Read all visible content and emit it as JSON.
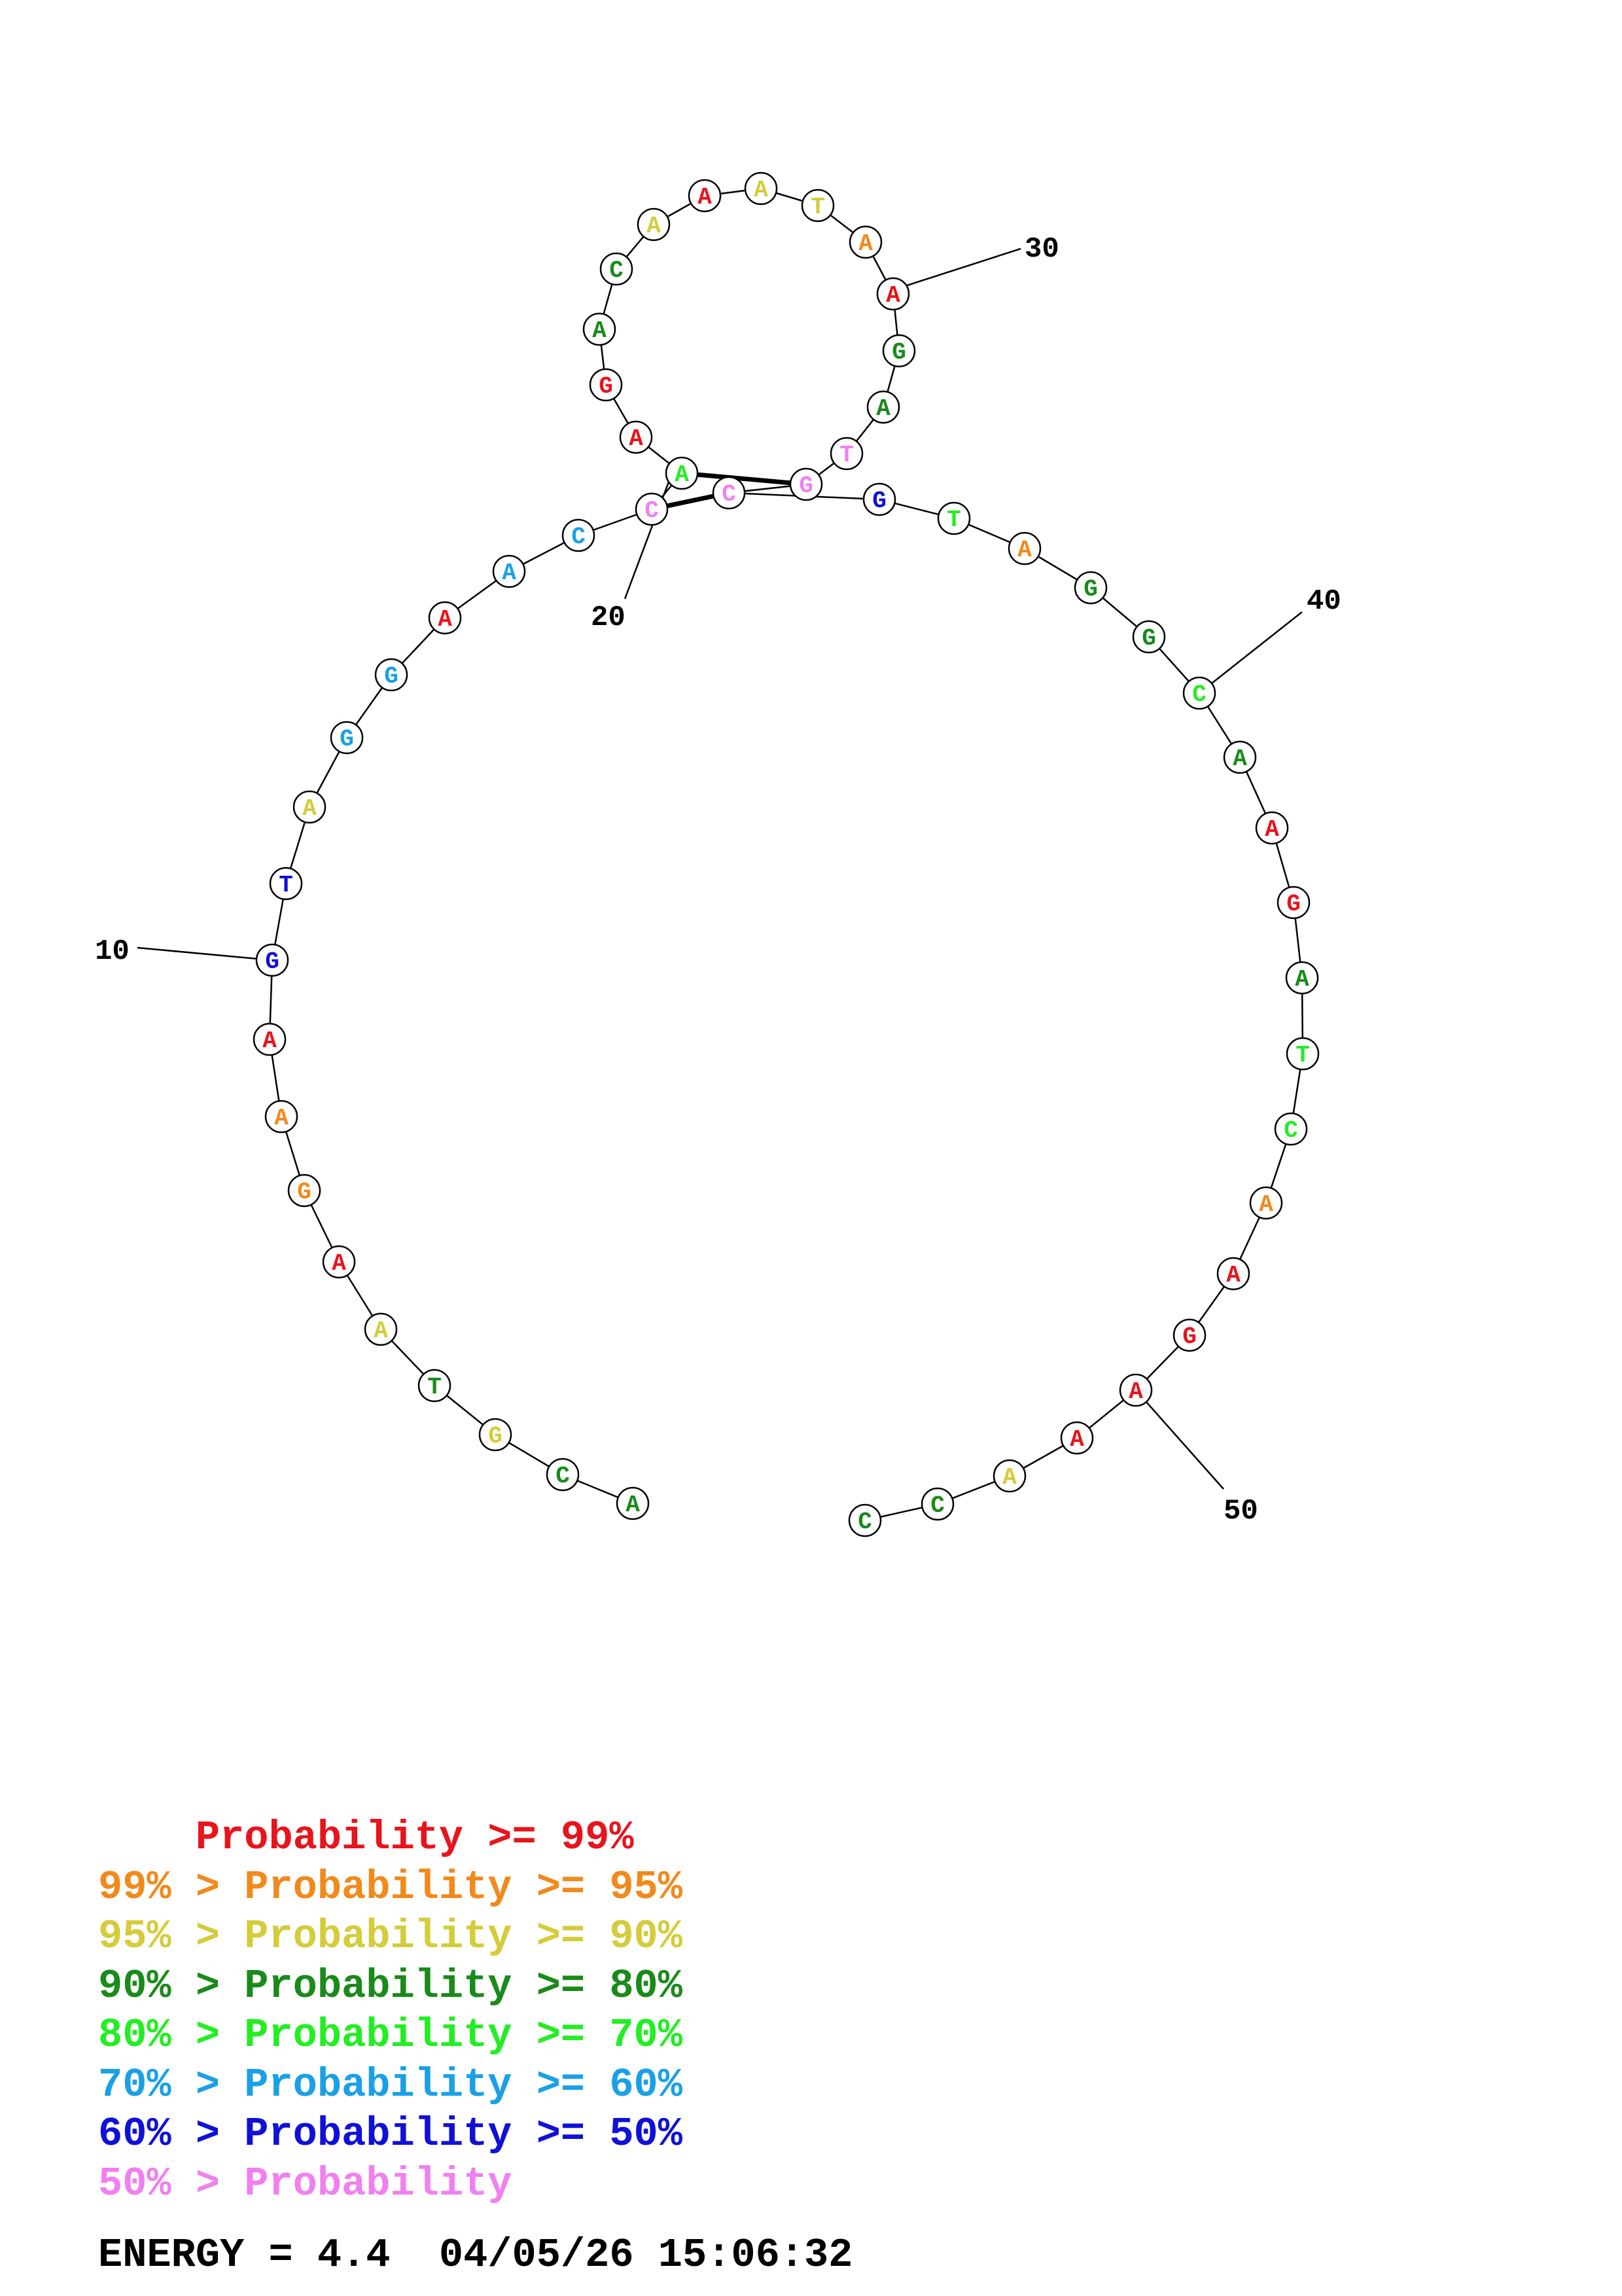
{
  "colors": {
    "p99": "#e8141c",
    "p95": "#f08a1c",
    "p90": "#d4cc3a",
    "p80": "#1a8a1a",
    "p70": "#22ee22",
    "p60": "#1aa0e6",
    "p50": "#1010d8",
    "plow": "#f080f0"
  },
  "sequence": [
    {
      "index": 1,
      "base": "A",
      "color": "p80"
    },
    {
      "index": 2,
      "base": "C",
      "color": "p80"
    },
    {
      "index": 3,
      "base": "G",
      "color": "p90"
    },
    {
      "index": 4,
      "base": "T",
      "color": "p80"
    },
    {
      "index": 5,
      "base": "A",
      "color": "p90"
    },
    {
      "index": 6,
      "base": "A",
      "color": "p99"
    },
    {
      "index": 7,
      "base": "G",
      "color": "p95"
    },
    {
      "index": 8,
      "base": "A",
      "color": "p95"
    },
    {
      "index": 9,
      "base": "A",
      "color": "p99"
    },
    {
      "index": 10,
      "base": "G",
      "color": "p50"
    },
    {
      "index": 11,
      "base": "T",
      "color": "p50"
    },
    {
      "index": 12,
      "base": "A",
      "color": "p90"
    },
    {
      "index": 13,
      "base": "G",
      "color": "p60"
    },
    {
      "index": 14,
      "base": "G",
      "color": "p60"
    },
    {
      "index": 15,
      "base": "A",
      "color": "p99"
    },
    {
      "index": 16,
      "base": "A",
      "color": "p60"
    },
    {
      "index": 17,
      "base": "C",
      "color": "p60"
    },
    {
      "index": 18,
      "base": "C",
      "color": "plow"
    },
    {
      "index": 19,
      "base": "A",
      "color": "p70"
    },
    {
      "index": 20,
      "base": "A",
      "color": "p99"
    },
    {
      "index": 21,
      "base": "G",
      "color": "p99"
    },
    {
      "index": 22,
      "base": "A",
      "color": "p80"
    },
    {
      "index": 23,
      "base": "C",
      "color": "p80"
    },
    {
      "index": 24,
      "base": "A",
      "color": "p90"
    },
    {
      "index": 25,
      "base": "A",
      "color": "p99"
    },
    {
      "index": 26,
      "base": "A",
      "color": "p90"
    },
    {
      "index": 27,
      "base": "T",
      "color": "p90"
    },
    {
      "index": 28,
      "base": "A",
      "color": "p95"
    },
    {
      "index": 29,
      "base": "A",
      "color": "p99"
    },
    {
      "index": 30,
      "base": "G",
      "color": "p80"
    },
    {
      "index": 31,
      "base": "A",
      "color": "p80"
    },
    {
      "index": 32,
      "base": "T",
      "color": "plow"
    },
    {
      "index": 33,
      "base": "G",
      "color": "plow"
    },
    {
      "index": 34,
      "base": "C",
      "color": "plow"
    },
    {
      "index": 35,
      "base": "G",
      "color": "p50"
    },
    {
      "index": 36,
      "base": "T",
      "color": "p70"
    },
    {
      "index": 37,
      "base": "A",
      "color": "p95"
    },
    {
      "index": 38,
      "base": "G",
      "color": "p80"
    },
    {
      "index": 39,
      "base": "G",
      "color": "p80"
    },
    {
      "index": 40,
      "base": "C",
      "color": "p70"
    },
    {
      "index": 41,
      "base": "A",
      "color": "p80"
    },
    {
      "index": 42,
      "base": "A",
      "color": "p99"
    },
    {
      "index": 43,
      "base": "G",
      "color": "p99"
    },
    {
      "index": 44,
      "base": "A",
      "color": "p80"
    },
    {
      "index": 45,
      "base": "T",
      "color": "p70"
    },
    {
      "index": 46,
      "base": "C",
      "color": "p70"
    },
    {
      "index": 47,
      "base": "A",
      "color": "p95"
    },
    {
      "index": 48,
      "base": "A",
      "color": "p99"
    },
    {
      "index": 49,
      "base": "G",
      "color": "p99"
    },
    {
      "index": 50,
      "base": "A",
      "color": "p99"
    },
    {
      "index": 51,
      "base": "A",
      "color": "p99"
    },
    {
      "index": 52,
      "base": "A",
      "color": "p90"
    },
    {
      "index": 53,
      "base": "C",
      "color": "p80"
    },
    {
      "index": 54,
      "base": "C",
      "color": "p80"
    }
  ],
  "pairs": [
    {
      "i": 18,
      "j": 34
    },
    {
      "i": 19,
      "j": 33
    }
  ],
  "position_labels": [
    {
      "index": 10,
      "text": "10"
    },
    {
      "index": 20,
      "text": "20"
    },
    {
      "index": 30,
      "text": "30"
    },
    {
      "index": 40,
      "text": "40"
    },
    {
      "index": 50,
      "text": "50"
    }
  ],
  "legend": [
    {
      "prefix": "    ",
      "text": "Probability >= 99%",
      "color": "p99"
    },
    {
      "prefix": "",
      "text": "99% > Probability >= 95%",
      "color": "p95"
    },
    {
      "prefix": "",
      "text": "95% > Probability >= 90%",
      "color": "p90"
    },
    {
      "prefix": "",
      "text": "90% > Probability >= 80%",
      "color": "p80"
    },
    {
      "prefix": "",
      "text": "80% > Probability >= 70%",
      "color": "p70"
    },
    {
      "prefix": "",
      "text": "70% > Probability >= 60%",
      "color": "p60"
    },
    {
      "prefix": "",
      "text": "60% > Probability >= 50%",
      "color": "p50"
    },
    {
      "prefix": "",
      "text": "50% > Probability",
      "color": "plow"
    }
  ],
  "footer": {
    "energy": "ENERGY = 4.4  04/05/26 15:06:32"
  }
}
